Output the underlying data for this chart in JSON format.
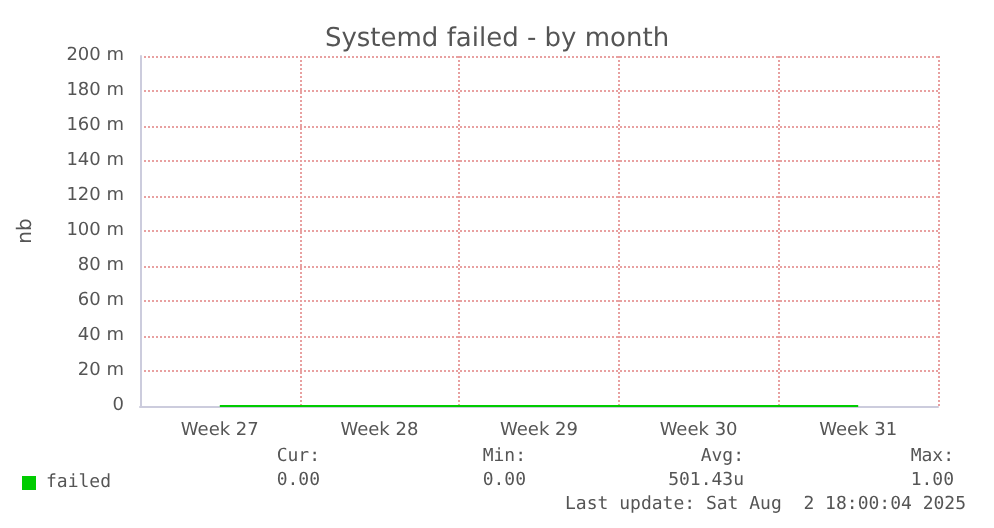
{
  "chart_data": {
    "type": "line",
    "title": "Systemd failed - by month",
    "ylabel": "nb",
    "categories": [
      "Week 27",
      "Week 28",
      "Week 29",
      "Week 30",
      "Week 31"
    ],
    "series": [
      {
        "name": "failed",
        "color": "#00cc00",
        "values": [
          0,
          0,
          0,
          0,
          0
        ]
      }
    ],
    "ylim": [
      0,
      200
    ],
    "yticks": [
      0,
      {
        "value": 20,
        "label": "20 m"
      },
      {
        "value": 40,
        "label": "40 m"
      },
      {
        "value": 60,
        "label": "60 m"
      },
      {
        "value": 80,
        "label": "80 m"
      },
      {
        "value": 100,
        "label": "100 m"
      },
      {
        "value": 120,
        "label": "120 m"
      },
      {
        "value": 140,
        "label": "140 m"
      },
      {
        "value": 160,
        "label": "160 m"
      },
      {
        "value": 180,
        "label": "180 m"
      },
      {
        "value": 200,
        "label": "200 m"
      }
    ],
    "grid": true,
    "legend": "bottom left",
    "marker": "none",
    "line_style": "solid",
    "annotations": [
      "Cur:",
      "0.00",
      "Min:",
      "0.00",
      "Avg:",
      "501.43u",
      "Max:",
      "1.00",
      "Last update: Sat Aug  2 18:00:04 2025"
    ]
  }
}
